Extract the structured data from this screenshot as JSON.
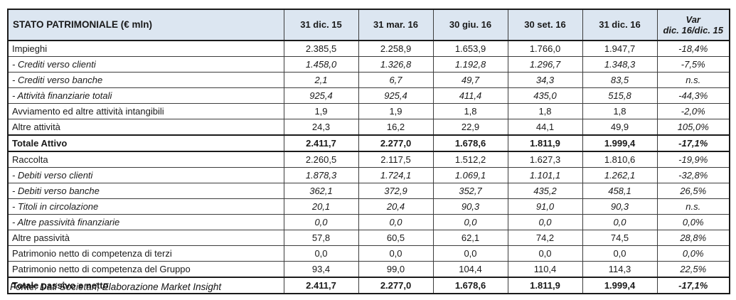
{
  "chart_data": {
    "type": "table",
    "title": "STATO PATRIMONIALE (€ mln)",
    "period_columns": [
      "31 dic. 15",
      "31 mar. 16",
      "30 giu. 16",
      "30 set. 16",
      "31 dic. 16"
    ],
    "var_header": {
      "line1": "Var",
      "line2": "dic. 16/dic. 15"
    },
    "rows": [
      {
        "label": "Impieghi",
        "style": "normal",
        "values": [
          "2.385,5",
          "2.258,9",
          "1.653,9",
          "1.766,0",
          "1.947,7"
        ],
        "var": "-18,4%"
      },
      {
        "label": "- Crediti verso clienti",
        "style": "sub",
        "values": [
          "1.458,0",
          "1.326,8",
          "1.192,8",
          "1.296,7",
          "1.348,3"
        ],
        "var": "-7,5%"
      },
      {
        "label": "- Crediti verso banche",
        "style": "sub",
        "values": [
          "2,1",
          "6,7",
          "49,7",
          "34,3",
          "83,5"
        ],
        "var": "n.s."
      },
      {
        "label": "- Attività finanziarie totali",
        "style": "sub",
        "values": [
          "925,4",
          "925,4",
          "411,4",
          "435,0",
          "515,8"
        ],
        "var": "-44,3%"
      },
      {
        "label": "Avviamento ed altre attività intangibili",
        "style": "normal",
        "values": [
          "1,9",
          "1,9",
          "1,8",
          "1,8",
          "1,8"
        ],
        "var": "-2,0%"
      },
      {
        "label": "Altre attività",
        "style": "normal",
        "values": [
          "24,3",
          "16,2",
          "22,9",
          "44,1",
          "49,9"
        ],
        "var": "105,0%"
      },
      {
        "label": "Totale Attivo",
        "style": "total",
        "values": [
          "2.411,7",
          "2.277,0",
          "1.678,6",
          "1.811,9",
          "1.999,4"
        ],
        "var": "-17,1%"
      },
      {
        "label": "Raccolta",
        "style": "normal",
        "values": [
          "2.260,5",
          "2.117,5",
          "1.512,2",
          "1.627,3",
          "1.810,6"
        ],
        "var": "-19,9%"
      },
      {
        "label": "- Debiti verso clienti",
        "style": "sub",
        "values": [
          "1.878,3",
          "1.724,1",
          "1.069,1",
          "1.101,1",
          "1.262,1"
        ],
        "var": "-32,8%"
      },
      {
        "label": "- Debiti verso banche",
        "style": "sub",
        "values": [
          "362,1",
          "372,9",
          "352,7",
          "435,2",
          "458,1"
        ],
        "var": "26,5%"
      },
      {
        "label": "- Titoli in circolazione",
        "style": "sub",
        "values": [
          "20,1",
          "20,4",
          "90,3",
          "91,0",
          "90,3"
        ],
        "var": "n.s."
      },
      {
        "label": "- Altre passività finanziarie",
        "style": "sub",
        "values": [
          "0,0",
          "0,0",
          "0,0",
          "0,0",
          "0,0"
        ],
        "var": "0,0%"
      },
      {
        "label": "Altre passività",
        "style": "normal",
        "values": [
          "57,8",
          "60,5",
          "62,1",
          "74,2",
          "74,5"
        ],
        "var": "28,8%"
      },
      {
        "label": "Patrimonio netto di competenza di terzi",
        "style": "normal",
        "values": [
          "0,0",
          "0,0",
          "0,0",
          "0,0",
          "0,0"
        ],
        "var": "0,0%"
      },
      {
        "label": "Patrimonio netto di competenza del Gruppo",
        "style": "normal",
        "values": [
          "93,4",
          "99,0",
          "104,4",
          "110,4",
          "114,3"
        ],
        "var": "22,5%"
      },
      {
        "label": "Totale passivo e netto",
        "style": "total",
        "values": [
          "2.411,7",
          "2.277,0",
          "1.678,6",
          "1.811,9",
          "1.999,4"
        ],
        "var": "-17,1%"
      }
    ],
    "highlighted_column": "31 dic. 16",
    "footer": "Fonte: Dati Societari, Elaborazione Market Insight",
    "colors": {
      "cell_blue": "#dce6f1",
      "cell_white": "#ffffff",
      "border_thick": "#1a1a1a",
      "border_thin": "#3d3d3d",
      "text": "#1a1a1a"
    }
  }
}
